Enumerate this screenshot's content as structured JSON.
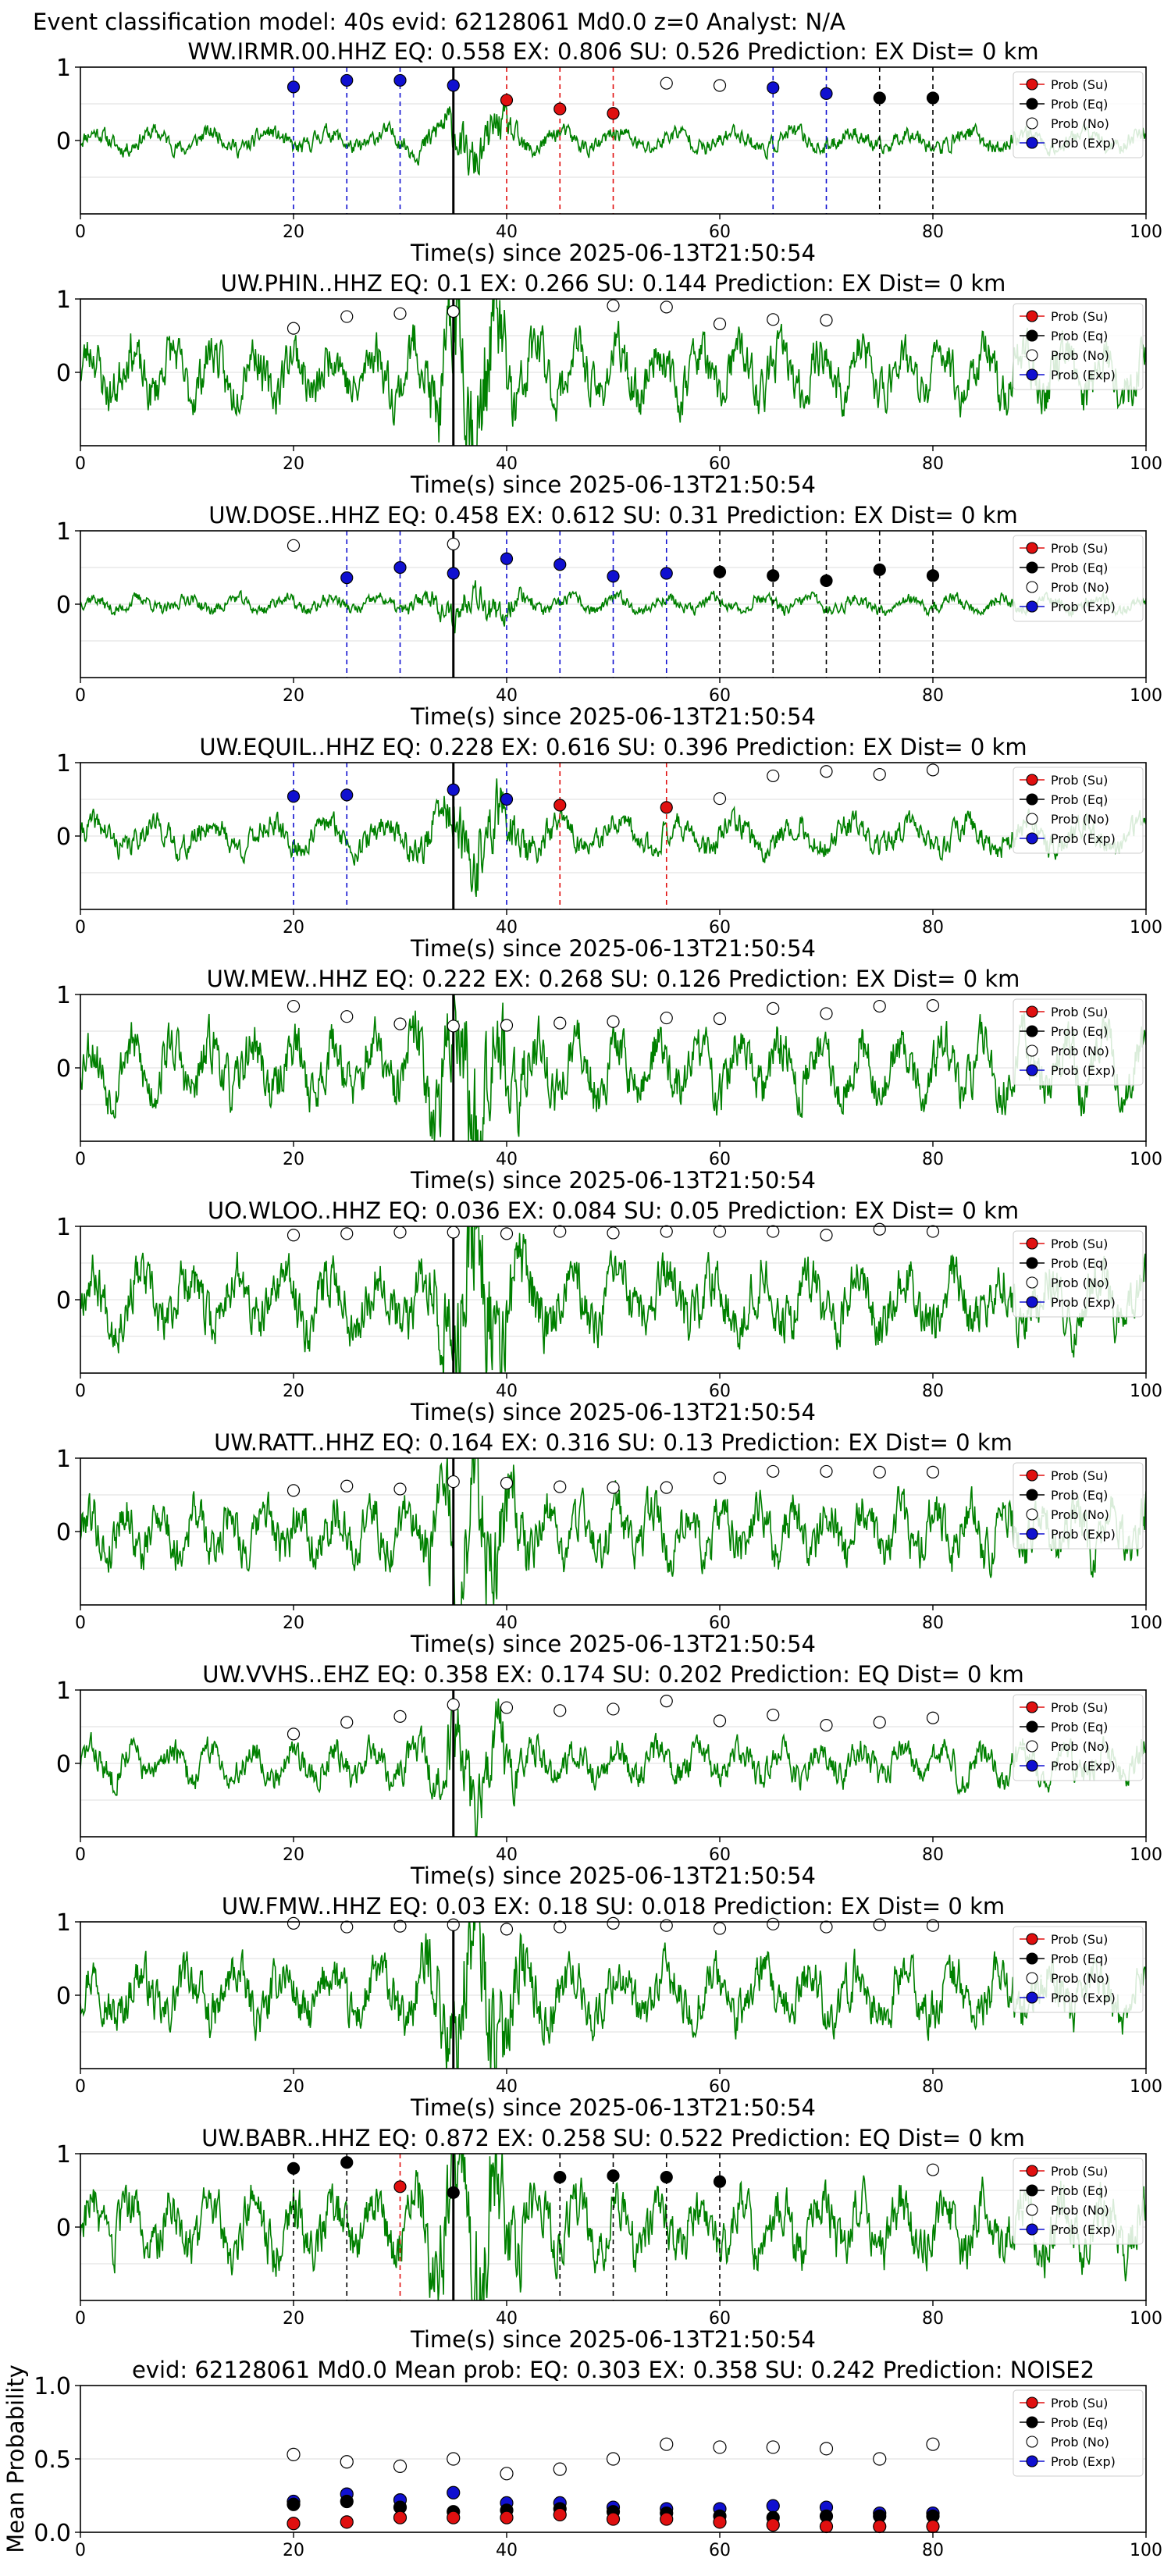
{
  "figure_title": "Event classification model: 40s evid: 62128061 Md0.0 z=0 Analyst: N/A",
  "legend_entries": [
    {
      "label": "Prob (Su)",
      "color": "#e01010"
    },
    {
      "label": "Prob (Eq)",
      "color": "#000000"
    },
    {
      "label": "Prob (No)",
      "color": "#ffffff"
    },
    {
      "label": "Prob (Exp)",
      "color": "#1010d0"
    }
  ],
  "colors": {
    "waveform": "#008000",
    "su": "#e01010",
    "eq": "#000000",
    "no": "#ffffff",
    "exp": "#1010d0"
  },
  "chart_data": [
    {
      "type": "line",
      "title": "WW.IRMR.00.HHZ   EQ: 0.558  EX: 0.806  SU: 0.526   Prediction: EX    Dist= 0 km",
      "xlabel": "Time(s) since 2025-06-13T21:50:54",
      "ylabel": "",
      "xlim": [
        0,
        100
      ],
      "xticks": [
        0,
        20,
        40,
        60,
        80,
        100
      ],
      "yticks": [
        0,
        1
      ],
      "origin_time": 35,
      "amp": 0.2,
      "seed": 11,
      "grid": "y",
      "markers": [
        {
          "x": 20,
          "y": 0.73,
          "cls": "exp"
        },
        {
          "x": 25,
          "y": 0.82,
          "cls": "exp"
        },
        {
          "x": 30,
          "y": 0.82,
          "cls": "exp"
        },
        {
          "x": 35,
          "y": 0.75,
          "cls": "exp"
        },
        {
          "x": 40,
          "y": 0.55,
          "cls": "su"
        },
        {
          "x": 45,
          "y": 0.43,
          "cls": "su"
        },
        {
          "x": 50,
          "y": 0.37,
          "cls": "su"
        },
        {
          "x": 55,
          "y": 0.78,
          "cls": "no"
        },
        {
          "x": 60,
          "y": 0.75,
          "cls": "no"
        },
        {
          "x": 65,
          "y": 0.72,
          "cls": "exp"
        },
        {
          "x": 70,
          "y": 0.64,
          "cls": "exp"
        },
        {
          "x": 75,
          "y": 0.58,
          "cls": "eq"
        },
        {
          "x": 80,
          "y": 0.58,
          "cls": "eq"
        }
      ]
    },
    {
      "type": "line",
      "title": "UW.PHIN..HHZ   EQ: 0.1  EX: 0.266  SU: 0.144   Prediction: EX    Dist= 0 km",
      "xlabel": "Time(s) since 2025-06-13T21:50:54",
      "ylabel": "",
      "xlim": [
        0,
        100
      ],
      "xticks": [
        0,
        20,
        40,
        60,
        80,
        100
      ],
      "yticks": [
        0,
        1
      ],
      "origin_time": 35,
      "amp": 0.55,
      "seed": 23,
      "grid": "y",
      "markers": [
        {
          "x": 20,
          "y": 0.6,
          "cls": "no"
        },
        {
          "x": 25,
          "y": 0.76,
          "cls": "no"
        },
        {
          "x": 30,
          "y": 0.8,
          "cls": "no"
        },
        {
          "x": 35,
          "y": 0.83,
          "cls": "no"
        },
        {
          "x": 50,
          "y": 0.91,
          "cls": "no"
        },
        {
          "x": 55,
          "y": 0.89,
          "cls": "no"
        },
        {
          "x": 60,
          "y": 0.66,
          "cls": "no"
        },
        {
          "x": 65,
          "y": 0.72,
          "cls": "no"
        },
        {
          "x": 70,
          "y": 0.71,
          "cls": "no"
        }
      ]
    },
    {
      "type": "line",
      "title": "UW.DOSE..HHZ   EQ: 0.458  EX: 0.612  SU: 0.31   Prediction: EX    Dist= 0 km",
      "xlabel": "Time(s) since 2025-06-13T21:50:54",
      "ylabel": "",
      "xlim": [
        0,
        100
      ],
      "xticks": [
        0,
        20,
        40,
        60,
        80,
        100
      ],
      "yticks": [
        0,
        1
      ],
      "origin_time": 35,
      "amp": 0.15,
      "seed": 37,
      "grid": "y",
      "markers": [
        {
          "x": 20,
          "y": 0.8,
          "cls": "no"
        },
        {
          "x": 25,
          "y": 0.36,
          "cls": "exp"
        },
        {
          "x": 30,
          "y": 0.5,
          "cls": "exp"
        },
        {
          "x": 35,
          "y": 0.42,
          "cls": "exp"
        },
        {
          "x": 35,
          "y": 0.82,
          "cls": "no"
        },
        {
          "x": 40,
          "y": 0.62,
          "cls": "exp"
        },
        {
          "x": 45,
          "y": 0.54,
          "cls": "exp"
        },
        {
          "x": 50,
          "y": 0.38,
          "cls": "exp"
        },
        {
          "x": 55,
          "y": 0.42,
          "cls": "exp"
        },
        {
          "x": 60,
          "y": 0.44,
          "cls": "eq"
        },
        {
          "x": 65,
          "y": 0.39,
          "cls": "eq"
        },
        {
          "x": 70,
          "y": 0.32,
          "cls": "eq"
        },
        {
          "x": 75,
          "y": 0.47,
          "cls": "eq"
        },
        {
          "x": 80,
          "y": 0.39,
          "cls": "eq"
        }
      ]
    },
    {
      "type": "line",
      "title": "UW.EQUIL..HHZ   EQ: 0.228  EX: 0.616  SU: 0.396   Prediction: EX    Dist= 0 km",
      "xlabel": "Time(s) since 2025-06-13T21:50:54",
      "ylabel": "",
      "xlim": [
        0,
        100
      ],
      "xticks": [
        0,
        20,
        40,
        60,
        80,
        100
      ],
      "yticks": [
        0,
        1
      ],
      "origin_time": 35,
      "amp": 0.3,
      "seed": 41,
      "grid": "y",
      "markers": [
        {
          "x": 20,
          "y": 0.54,
          "cls": "exp"
        },
        {
          "x": 25,
          "y": 0.56,
          "cls": "exp"
        },
        {
          "x": 35,
          "y": 0.63,
          "cls": "exp"
        },
        {
          "x": 40,
          "y": 0.5,
          "cls": "exp"
        },
        {
          "x": 45,
          "y": 0.42,
          "cls": "su"
        },
        {
          "x": 55,
          "y": 0.39,
          "cls": "su"
        },
        {
          "x": 60,
          "y": 0.51,
          "cls": "no"
        },
        {
          "x": 65,
          "y": 0.82,
          "cls": "no"
        },
        {
          "x": 70,
          "y": 0.88,
          "cls": "no"
        },
        {
          "x": 75,
          "y": 0.84,
          "cls": "no"
        },
        {
          "x": 80,
          "y": 0.9,
          "cls": "no"
        }
      ]
    },
    {
      "type": "line",
      "title": "UW.MEW..HHZ   EQ: 0.222  EX: 0.268  SU: 0.126   Prediction: EX    Dist= 0 km",
      "xlabel": "Time(s) since 2025-06-13T21:50:54",
      "ylabel": "",
      "xlim": [
        0,
        100
      ],
      "xticks": [
        0,
        20,
        40,
        60,
        80,
        100
      ],
      "yticks": [
        0,
        1
      ],
      "origin_time": 35,
      "amp": 0.6,
      "seed": 53,
      "grid": "y",
      "markers": [
        {
          "x": 20,
          "y": 0.84,
          "cls": "no"
        },
        {
          "x": 25,
          "y": 0.7,
          "cls": "no"
        },
        {
          "x": 30,
          "y": 0.6,
          "cls": "no"
        },
        {
          "x": 35,
          "y": 0.57,
          "cls": "no"
        },
        {
          "x": 40,
          "y": 0.58,
          "cls": "no"
        },
        {
          "x": 45,
          "y": 0.61,
          "cls": "no"
        },
        {
          "x": 50,
          "y": 0.63,
          "cls": "no"
        },
        {
          "x": 55,
          "y": 0.68,
          "cls": "no"
        },
        {
          "x": 60,
          "y": 0.67,
          "cls": "no"
        },
        {
          "x": 65,
          "y": 0.81,
          "cls": "no"
        },
        {
          "x": 70,
          "y": 0.74,
          "cls": "no"
        },
        {
          "x": 75,
          "y": 0.84,
          "cls": "no"
        },
        {
          "x": 80,
          "y": 0.85,
          "cls": "no"
        }
      ]
    },
    {
      "type": "line",
      "title": "UO.WLOO..HHZ   EQ: 0.036  EX: 0.084  SU: 0.05   Prediction: EX    Dist= 0 km",
      "xlabel": "Time(s) since 2025-06-13T21:50:54",
      "ylabel": "",
      "xlim": [
        0,
        100
      ],
      "xticks": [
        0,
        20,
        40,
        60,
        80,
        100
      ],
      "yticks": [
        0,
        1
      ],
      "origin_time": 35,
      "amp": 0.6,
      "seed": 67,
      "grid": "y",
      "markers": [
        {
          "x": 20,
          "y": 0.88,
          "cls": "no"
        },
        {
          "x": 25,
          "y": 0.9,
          "cls": "no"
        },
        {
          "x": 30,
          "y": 0.92,
          "cls": "no"
        },
        {
          "x": 35,
          "y": 0.92,
          "cls": "no"
        },
        {
          "x": 40,
          "y": 0.9,
          "cls": "no"
        },
        {
          "x": 45,
          "y": 0.93,
          "cls": "no"
        },
        {
          "x": 50,
          "y": 0.91,
          "cls": "no"
        },
        {
          "x": 55,
          "y": 0.93,
          "cls": "no"
        },
        {
          "x": 60,
          "y": 0.93,
          "cls": "no"
        },
        {
          "x": 65,
          "y": 0.93,
          "cls": "no"
        },
        {
          "x": 70,
          "y": 0.88,
          "cls": "no"
        },
        {
          "x": 75,
          "y": 0.96,
          "cls": "no"
        },
        {
          "x": 80,
          "y": 0.93,
          "cls": "no"
        }
      ]
    },
    {
      "type": "line",
      "title": "UW.RATT..HHZ   EQ: 0.164  EX: 0.316  SU: 0.13   Prediction: EX    Dist= 0 km",
      "xlabel": "Time(s) since 2025-06-13T21:50:54",
      "ylabel": "",
      "xlim": [
        0,
        100
      ],
      "xticks": [
        0,
        20,
        40,
        60,
        80,
        100
      ],
      "yticks": [
        0,
        1
      ],
      "origin_time": 35,
      "amp": 0.55,
      "seed": 79,
      "grid": "y",
      "markers": [
        {
          "x": 20,
          "y": 0.56,
          "cls": "no"
        },
        {
          "x": 25,
          "y": 0.62,
          "cls": "no"
        },
        {
          "x": 30,
          "y": 0.58,
          "cls": "no"
        },
        {
          "x": 35,
          "y": 0.68,
          "cls": "no"
        },
        {
          "x": 40,
          "y": 0.66,
          "cls": "no"
        },
        {
          "x": 45,
          "y": 0.61,
          "cls": "no"
        },
        {
          "x": 50,
          "y": 0.6,
          "cls": "no"
        },
        {
          "x": 55,
          "y": 0.6,
          "cls": "no"
        },
        {
          "x": 60,
          "y": 0.73,
          "cls": "no"
        },
        {
          "x": 65,
          "y": 0.82,
          "cls": "no"
        },
        {
          "x": 70,
          "y": 0.82,
          "cls": "no"
        },
        {
          "x": 75,
          "y": 0.81,
          "cls": "no"
        },
        {
          "x": 80,
          "y": 0.81,
          "cls": "no"
        }
      ]
    },
    {
      "type": "line",
      "title": "UW.VVHS..EHZ   EQ: 0.358  EX: 0.174  SU: 0.202   Prediction: EQ    Dist= 0 km",
      "xlabel": "Time(s) since 2025-06-13T21:50:54",
      "ylabel": "",
      "xlim": [
        0,
        100
      ],
      "xticks": [
        0,
        20,
        40,
        60,
        80,
        100
      ],
      "yticks": [
        0,
        1
      ],
      "origin_time": 35,
      "amp": 0.35,
      "seed": 83,
      "grid": "y",
      "markers": [
        {
          "x": 20,
          "y": 0.4,
          "cls": "no"
        },
        {
          "x": 25,
          "y": 0.56,
          "cls": "no"
        },
        {
          "x": 30,
          "y": 0.64,
          "cls": "no"
        },
        {
          "x": 35,
          "y": 0.8,
          "cls": "no"
        },
        {
          "x": 40,
          "y": 0.76,
          "cls": "no"
        },
        {
          "x": 45,
          "y": 0.72,
          "cls": "no"
        },
        {
          "x": 50,
          "y": 0.74,
          "cls": "no"
        },
        {
          "x": 55,
          "y": 0.85,
          "cls": "no"
        },
        {
          "x": 60,
          "y": 0.58,
          "cls": "no"
        },
        {
          "x": 65,
          "y": 0.66,
          "cls": "no"
        },
        {
          "x": 70,
          "y": 0.52,
          "cls": "no"
        },
        {
          "x": 75,
          "y": 0.56,
          "cls": "no"
        },
        {
          "x": 80,
          "y": 0.62,
          "cls": "no"
        }
      ]
    },
    {
      "type": "line",
      "title": "UW.FMW..HHZ   EQ: 0.03  EX: 0.18  SU: 0.018   Prediction: EX    Dist= 0 km",
      "xlabel": "Time(s) since 2025-06-13T21:50:54",
      "ylabel": "",
      "xlim": [
        0,
        100
      ],
      "xticks": [
        0,
        20,
        40,
        60,
        80,
        100
      ],
      "yticks": [
        0,
        1
      ],
      "origin_time": 35,
      "amp": 0.55,
      "seed": 97,
      "grid": "y",
      "markers": [
        {
          "x": 20,
          "y": 0.98,
          "cls": "no"
        },
        {
          "x": 25,
          "y": 0.93,
          "cls": "no"
        },
        {
          "x": 30,
          "y": 0.94,
          "cls": "no"
        },
        {
          "x": 35,
          "y": 0.96,
          "cls": "no"
        },
        {
          "x": 40,
          "y": 0.9,
          "cls": "no"
        },
        {
          "x": 45,
          "y": 0.93,
          "cls": "no"
        },
        {
          "x": 50,
          "y": 0.98,
          "cls": "no"
        },
        {
          "x": 55,
          "y": 0.95,
          "cls": "no"
        },
        {
          "x": 60,
          "y": 0.91,
          "cls": "no"
        },
        {
          "x": 65,
          "y": 0.97,
          "cls": "no"
        },
        {
          "x": 70,
          "y": 0.93,
          "cls": "no"
        },
        {
          "x": 75,
          "y": 0.96,
          "cls": "no"
        },
        {
          "x": 80,
          "y": 0.95,
          "cls": "no"
        }
      ]
    },
    {
      "type": "line",
      "title": "UW.BABR..HHZ   EQ: 0.872  EX: 0.258  SU: 0.522   Prediction: EQ    Dist= 0 km",
      "xlabel": "Time(s) since 2025-06-13T21:50:54",
      "ylabel": "",
      "xlim": [
        0,
        100
      ],
      "xticks": [
        0,
        20,
        40,
        60,
        80,
        100
      ],
      "yticks": [
        0,
        1
      ],
      "origin_time": 35,
      "amp": 0.6,
      "seed": 103,
      "grid": "y",
      "markers": [
        {
          "x": 20,
          "y": 0.8,
          "cls": "eq"
        },
        {
          "x": 25,
          "y": 0.88,
          "cls": "eq"
        },
        {
          "x": 30,
          "y": 0.55,
          "cls": "su"
        },
        {
          "x": 35,
          "y": 0.47,
          "cls": "eq"
        },
        {
          "x": 45,
          "y": 0.68,
          "cls": "eq"
        },
        {
          "x": 50,
          "y": 0.7,
          "cls": "eq"
        },
        {
          "x": 55,
          "y": 0.68,
          "cls": "eq"
        },
        {
          "x": 60,
          "y": 0.62,
          "cls": "eq"
        },
        {
          "x": 80,
          "y": 0.78,
          "cls": "no"
        }
      ]
    },
    {
      "type": "scatter",
      "title": "evid: 62128061   Md0.0    Mean prob:    EQ: 0.303  EX: 0.358  SU: 0.242   Prediction: NOISE2",
      "xlabel": "",
      "ylabel": "Mean Probability",
      "xlim": [
        0,
        100
      ],
      "ylim": [
        0,
        1
      ],
      "xticks": [
        0,
        20,
        40,
        60,
        80,
        100
      ],
      "yticks": [
        0,
        0.5,
        1
      ],
      "grid": "y",
      "x": [
        20,
        25,
        30,
        35,
        40,
        45,
        50,
        55,
        60,
        65,
        70,
        75,
        80
      ],
      "series": [
        {
          "name": "Prob (No)",
          "cls": "no",
          "values": [
            0.53,
            0.48,
            0.45,
            0.5,
            0.4,
            0.43,
            0.5,
            0.6,
            0.58,
            0.58,
            0.57,
            0.5,
            0.6
          ]
        },
        {
          "name": "Prob (Exp)",
          "cls": "exp",
          "values": [
            0.21,
            0.26,
            0.22,
            0.27,
            0.2,
            0.2,
            0.17,
            0.16,
            0.16,
            0.18,
            0.17,
            0.13,
            0.13
          ]
        },
        {
          "name": "Prob (Eq)",
          "cls": "eq",
          "values": [
            0.19,
            0.21,
            0.17,
            0.14,
            0.15,
            0.16,
            0.14,
            0.13,
            0.11,
            0.1,
            0.11,
            0.11,
            0.11
          ]
        },
        {
          "name": "Prob (Su)",
          "cls": "su",
          "values": [
            0.06,
            0.07,
            0.1,
            0.1,
            0.1,
            0.12,
            0.09,
            0.09,
            0.07,
            0.05,
            0.04,
            0.04,
            0.04
          ]
        }
      ]
    }
  ]
}
